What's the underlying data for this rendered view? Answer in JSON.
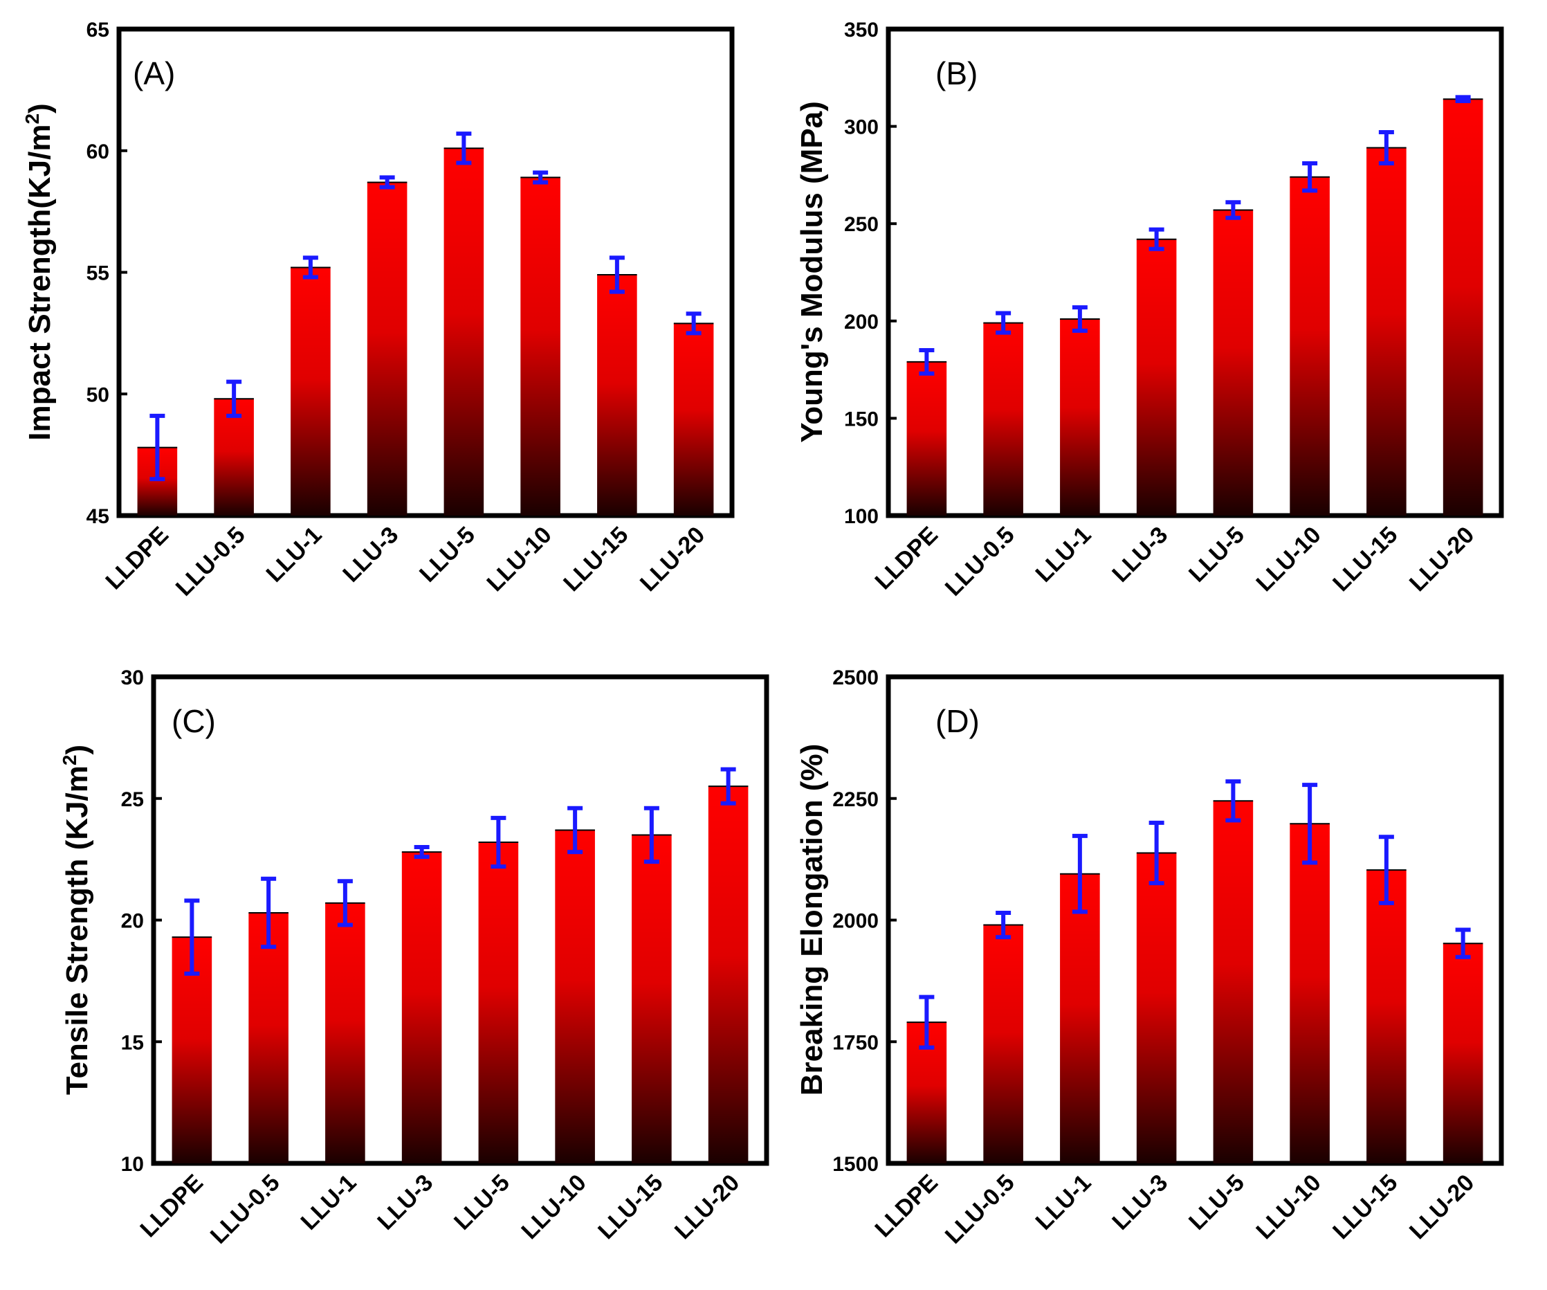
{
  "figure": {
    "colors": {
      "bar_top": "#ff0000",
      "bar_mid": "#e00000",
      "bar_bottom": "#1a0000",
      "error_bar": "#1a1aff",
      "axis": "#000000"
    }
  },
  "chart_data": [
    {
      "type": "bar",
      "panel_label": "(A)",
      "ylabel": "Impact Strength(KJ/m",
      "ylabel_sup": "2",
      "ylabel_close": ")",
      "xlabel": "",
      "categories": [
        "LLDPE",
        "LLU-0.5",
        "LLU-1",
        "LLU-3",
        "LLU-5",
        "LLU-10",
        "LLU-15",
        "LLU-20"
      ],
      "values": [
        47.8,
        49.8,
        55.2,
        58.7,
        60.1,
        58.9,
        54.9,
        52.9
      ],
      "errors": [
        1.3,
        0.7,
        0.4,
        0.2,
        0.6,
        0.2,
        0.7,
        0.4
      ],
      "ylim": [
        45,
        65
      ],
      "yticks": [
        "45",
        "50",
        "55",
        "60",
        "65"
      ]
    },
    {
      "type": "bar",
      "panel_label": "(B)",
      "ylabel": "Young's Modulus (MPa)",
      "ylabel_sup": "",
      "ylabel_close": "",
      "xlabel": "",
      "categories": [
        "LLDPE",
        "LLU-0.5",
        "LLU-1",
        "LLU-3",
        "LLU-5",
        "LLU-10",
        "LLU-15",
        "LLU-20"
      ],
      "values": [
        179,
        199,
        201,
        242,
        257,
        274,
        289,
        314
      ],
      "errors": [
        6,
        5,
        6,
        5,
        4,
        7,
        8,
        1
      ],
      "ylim": [
        100,
        350
      ],
      "yticks": [
        "100",
        "150",
        "200",
        "250",
        "300",
        "350"
      ]
    },
    {
      "type": "bar",
      "panel_label": "(C)",
      "ylabel": "Tensile Strength (KJ/m",
      "ylabel_sup": "2",
      "ylabel_close": ")",
      "xlabel": "",
      "categories": [
        "LLDPE",
        "LLU-0.5",
        "LLU-1",
        "LLU-3",
        "LLU-5",
        "LLU-10",
        "LLU-15",
        "LLU-20"
      ],
      "values": [
        19.3,
        20.3,
        20.7,
        22.8,
        23.2,
        23.7,
        23.5,
        25.5
      ],
      "errors": [
        1.5,
        1.4,
        0.9,
        0.2,
        1.0,
        0.9,
        1.1,
        0.7
      ],
      "ylim": [
        10,
        30
      ],
      "yticks": [
        "10",
        "15",
        "20",
        "25",
        "30"
      ]
    },
    {
      "type": "bar",
      "panel_label": "(D)",
      "ylabel": "Breaking Elongation (%)",
      "ylabel_sup": "",
      "ylabel_close": "",
      "xlabel": "",
      "categories": [
        "LLDPE",
        "LLU-0.5",
        "LLU-1",
        "LLU-3",
        "LLU-5",
        "LLU-10",
        "LLU-15",
        "LLU-20"
      ],
      "values": [
        1790,
        1990,
        2095,
        2138,
        2245,
        2198,
        2103,
        1952
      ],
      "errors": [
        52,
        25,
        78,
        62,
        40,
        80,
        68,
        28
      ],
      "ylim": [
        1500,
        2500
      ],
      "yticks": [
        "1500",
        "1750",
        "2000",
        "2250",
        "2500"
      ]
    }
  ]
}
